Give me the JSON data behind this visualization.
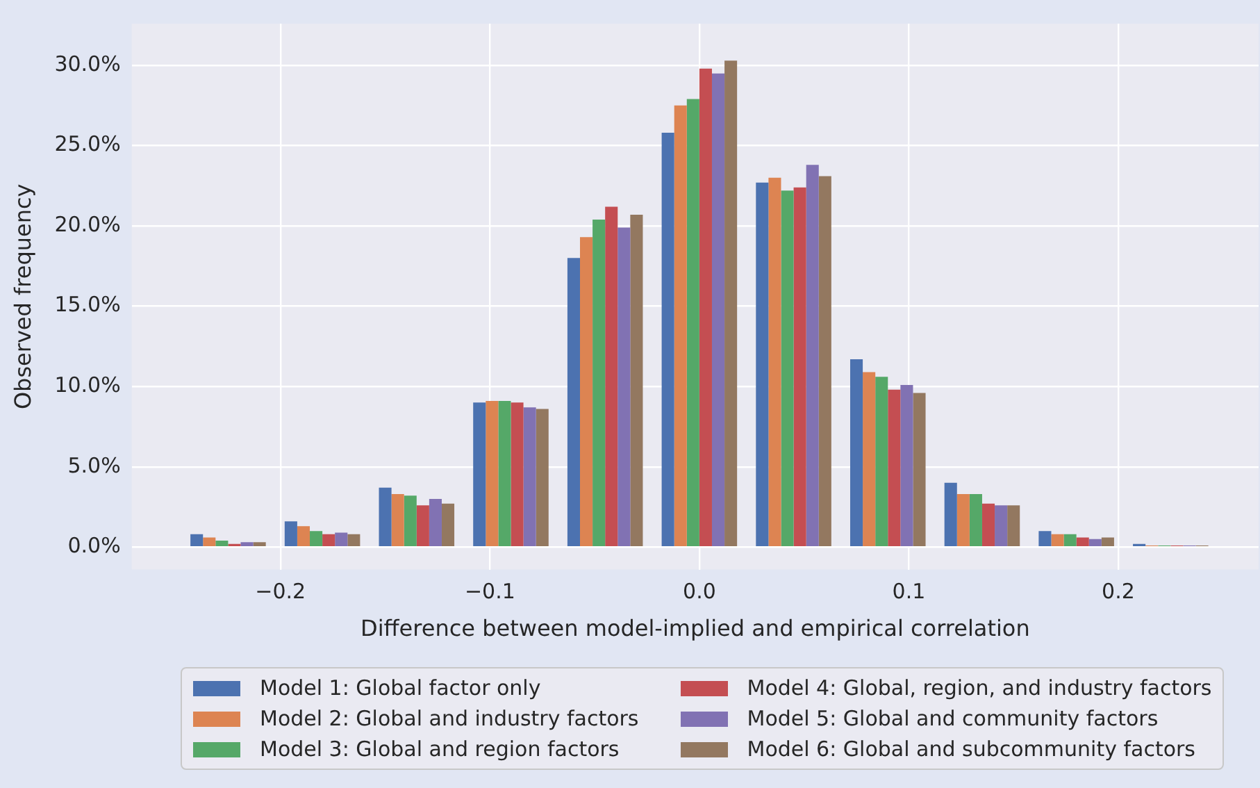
{
  "chart_data": {
    "type": "histogram",
    "xlabel": "Difference between model-implied and empirical correlation",
    "ylabel": "Observed frequency",
    "bins": [
      -0.2475,
      -0.2025,
      -0.1575,
      -0.1125,
      -0.0675,
      -0.0225,
      0.0225,
      0.0675,
      0.1125,
      0.1575,
      0.2025,
      0.2475
    ],
    "xlim": [
      -0.271,
      0.267
    ],
    "xticks": [
      {
        "value": -0.2,
        "label": "−0.2"
      },
      {
        "value": -0.1,
        "label": "−0.1"
      },
      {
        "value": 0,
        "label": "0.0"
      },
      {
        "value": 0.1,
        "label": "0.1"
      },
      {
        "value": 0.2,
        "label": "0.2"
      }
    ],
    "ylim": [
      -1.4,
      32.6
    ],
    "yticks": [
      {
        "value": 0,
        "label": "0.0%"
      },
      {
        "value": 5,
        "label": "5.0%"
      },
      {
        "value": 10,
        "label": "10.0%"
      },
      {
        "value": 15,
        "label": "15.0%"
      },
      {
        "value": 20,
        "label": "20.0%"
      },
      {
        "value": 25,
        "label": "25.0%"
      },
      {
        "value": 30,
        "label": "30.0%"
      }
    ],
    "grid": true,
    "legend": "bottom",
    "series": [
      {
        "name": "Model 1: Global factor only",
        "color": "#4c72b0",
        "values": [
          0.8,
          1.6,
          3.7,
          9.0,
          18.0,
          25.8,
          22.7,
          11.7,
          4.0,
          1.0,
          0.2
        ]
      },
      {
        "name": "Model 2: Global and industry factors",
        "color": "#dd8452",
        "values": [
          0.6,
          1.3,
          3.3,
          9.1,
          19.3,
          27.5,
          23.0,
          10.9,
          3.3,
          0.8,
          0.1
        ]
      },
      {
        "name": "Model 3: Global and region factors",
        "color": "#55a868",
        "values": [
          0.4,
          1.0,
          3.2,
          9.1,
          20.4,
          27.9,
          22.2,
          10.6,
          3.3,
          0.8,
          0.1
        ]
      },
      {
        "name": "Model 4: Global, region, and industry factors",
        "color": "#c44e52",
        "values": [
          0.2,
          0.8,
          2.6,
          9.0,
          21.2,
          29.8,
          22.4,
          9.8,
          2.7,
          0.6,
          0.1
        ]
      },
      {
        "name": "Model 5: Global and community factors",
        "color": "#8172b3",
        "values": [
          0.3,
          0.9,
          3.0,
          8.7,
          19.9,
          29.5,
          23.8,
          10.1,
          2.6,
          0.5,
          0.1
        ]
      },
      {
        "name": "Model 6: Global and subcommunity factors",
        "color": "#937860",
        "values": [
          0.3,
          0.8,
          2.7,
          8.6,
          20.7,
          30.3,
          23.1,
          9.6,
          2.6,
          0.6,
          0.1
        ]
      }
    ]
  }
}
